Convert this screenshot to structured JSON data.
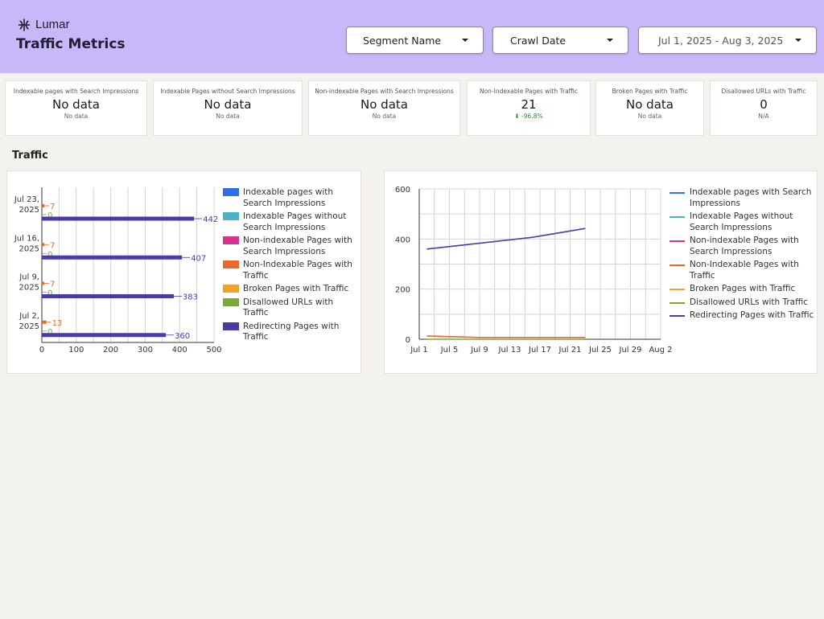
{
  "header": {
    "brand": "Lumar",
    "title": "Traffic Metrics",
    "filters": {
      "segment": "Segment Name",
      "crawl_date": "Crawl Date",
      "date_range": "Jul 1, 2025 - Aug 3, 2025"
    }
  },
  "kpis": [
    {
      "label": "Indexable pages with Search Impressions",
      "value": "No data",
      "sub": "No data"
    },
    {
      "label": "Indexable Pages without Search Impressions",
      "value": "No data",
      "sub": "No data"
    },
    {
      "label": "Non-indexable Pages with Search Impressions",
      "value": "No data",
      "sub": "No data"
    },
    {
      "label": "Non-Indexable Pages with Traffic",
      "value": "21",
      "sub": "⬇ -96.8%"
    },
    {
      "label": "Broken Pages with Traffic",
      "value": "No data",
      "sub": "No data"
    },
    {
      "label": "Disallowed URLs with Traffic",
      "value": "0",
      "sub": "N/A"
    }
  ],
  "section": {
    "title": "Traffic"
  },
  "colors": {
    "indexable_with": "#2e6ee6",
    "indexable_without": "#4bb4c4",
    "nonindexable_search": "#d6338e",
    "nonindexable_traffic": "#e8692a",
    "broken": "#f0a22e",
    "disallowed": "#7ca83e",
    "redirecting": "#4c3aa6",
    "header_bg": "#c8b8fa"
  },
  "legend": [
    {
      "label": "Indexable pages with Search Impressions",
      "color": "#2e6ee6"
    },
    {
      "label": "Indexable Pages without Search Impressions",
      "color": "#4bb4c4"
    },
    {
      "label": "Non-indexable Pages with Search Impressions",
      "color": "#d6338e"
    },
    {
      "label": "Non-Indexable Pages with Traffic",
      "color": "#e8692a"
    },
    {
      "label": "Broken Pages with Traffic",
      "color": "#f0a22e"
    },
    {
      "label": "Disallowed URLs with Traffic",
      "color": "#7ca83e"
    },
    {
      "label": "Redirecting Pages with Traffic",
      "color": "#4c3aa6"
    }
  ],
  "chart_data": [
    {
      "type": "bar",
      "orientation": "horizontal",
      "categories": [
        [
          "Jul 23,",
          "2025"
        ],
        [
          "Jul 16,",
          "2025"
        ],
        [
          "Jul 9,",
          "2025"
        ],
        [
          "Jul 2,",
          "2025"
        ]
      ],
      "series": [
        {
          "name": "Non-Indexable Pages with Traffic",
          "values": [
            7,
            7,
            7,
            13
          ],
          "color": "#e8692a"
        },
        {
          "name": "Disallowed URLs with Traffic",
          "values": [
            0,
            0,
            0,
            0
          ],
          "color": "#7ca83e"
        },
        {
          "name": "Redirecting Pages with Traffic",
          "values": [
            442,
            407,
            383,
            360
          ],
          "color": "#4c3aa6"
        }
      ],
      "xlim": [
        0,
        500
      ],
      "xticks": [
        0,
        100,
        200,
        300,
        400,
        500
      ],
      "grid": true,
      "legend": "right"
    },
    {
      "type": "line",
      "x": [
        "Jul 2",
        "Jul 9",
        "Jul 16",
        "Jul 23"
      ],
      "xticks": [
        "Jul 1",
        "Jul 5",
        "Jul 9",
        "Jul 13",
        "Jul 17",
        "Jul 21",
        "Jul 25",
        "Jul 29",
        "Aug 2"
      ],
      "series": [
        {
          "name": "Non-Indexable Pages with Traffic",
          "values": [
            13,
            7,
            7,
            7
          ],
          "color": "#e8692a"
        },
        {
          "name": "Disallowed URLs with Traffic",
          "values": [
            0,
            0,
            0,
            0
          ],
          "color": "#7ca83e"
        },
        {
          "name": "Redirecting Pages with Traffic",
          "values": [
            360,
            383,
            407,
            442
          ],
          "color": "#4c3aa6"
        }
      ],
      "ylim": [
        0,
        600
      ],
      "yticks": [
        0,
        200,
        400,
        600
      ],
      "grid": true,
      "legend": "right"
    }
  ]
}
